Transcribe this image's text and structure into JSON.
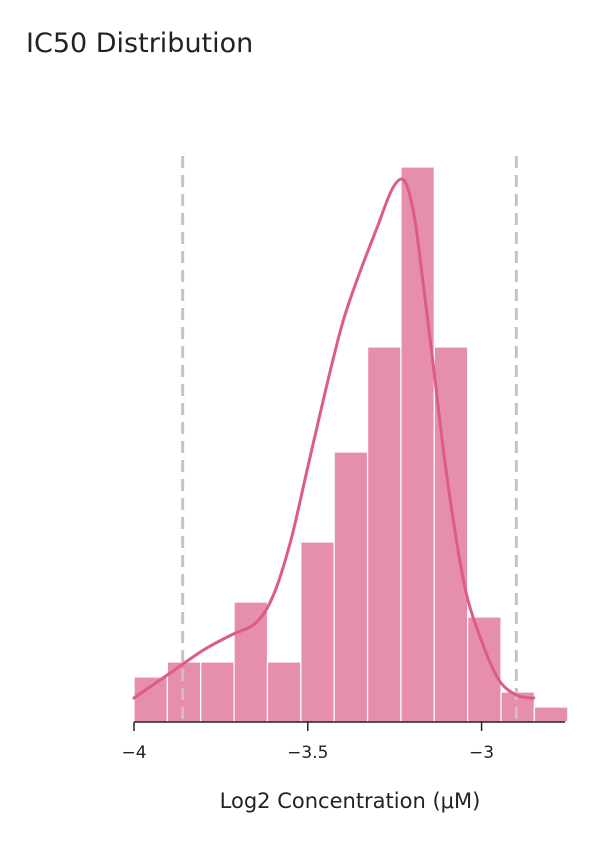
{
  "chart_data": {
    "type": "bar",
    "title": "IC50 Distribution",
    "xlabel": "Log2 Concentration (μM)",
    "ylabel": "",
    "xlim": [
      -4.0,
      -2.76
    ],
    "ylim": [
      0,
      18.4
    ],
    "xticks": [
      {
        "value": -4.0,
        "label": "−4"
      },
      {
        "value": -3.5,
        "label": "−3.5"
      },
      {
        "value": -3.0,
        "label": "−3"
      }
    ],
    "grid": false,
    "bin_width": 0.096,
    "bins": [
      {
        "x0": -4.0,
        "x1": -3.904,
        "count": 1.5
      },
      {
        "x0": -3.904,
        "x1": -3.808,
        "count": 2
      },
      {
        "x0": -3.808,
        "x1": -3.712,
        "count": 2
      },
      {
        "x0": -3.712,
        "x1": -3.616,
        "count": 4
      },
      {
        "x0": -3.616,
        "x1": -3.52,
        "count": 2
      },
      {
        "x0": -3.52,
        "x1": -3.424,
        "count": 6
      },
      {
        "x0": -3.424,
        "x1": -3.328,
        "count": 9
      },
      {
        "x0": -3.328,
        "x1": -3.232,
        "count": 12.5
      },
      {
        "x0": -3.232,
        "x1": -3.136,
        "count": 18.5
      },
      {
        "x0": -3.136,
        "x1": -3.04,
        "count": 12.5
      },
      {
        "x0": -3.04,
        "x1": -2.944,
        "count": 3.5
      },
      {
        "x0": -2.944,
        "x1": -2.848,
        "count": 1
      },
      {
        "x0": -2.848,
        "x1": -2.752,
        "count": 0.5
      }
    ],
    "kde": {
      "x": [
        -4.0,
        -3.9,
        -3.8,
        -3.72,
        -3.65,
        -3.6,
        -3.55,
        -3.5,
        -3.45,
        -3.4,
        -3.35,
        -3.3,
        -3.26,
        -3.23,
        -3.21,
        -3.19,
        -3.17,
        -3.14,
        -3.1,
        -3.05,
        -3.0,
        -2.95,
        -2.9,
        -2.86,
        -2.85
      ],
      "y": [
        0.8,
        1.6,
        2.4,
        2.9,
        3.3,
        4.2,
        6.0,
        8.5,
        11.0,
        13.3,
        15.0,
        16.5,
        17.7,
        18.1,
        17.7,
        16.6,
        14.8,
        12.0,
        8.2,
        4.6,
        2.7,
        1.4,
        0.9,
        0.8,
        0.8
      ]
    },
    "vlines": [
      -3.86,
      -2.9
    ],
    "colors": {
      "bar": "#e68fad",
      "bar_edge": "#ffffff",
      "kde": "#dd5b8b",
      "vline": "#cdbfc4",
      "axis": "#222222"
    }
  }
}
